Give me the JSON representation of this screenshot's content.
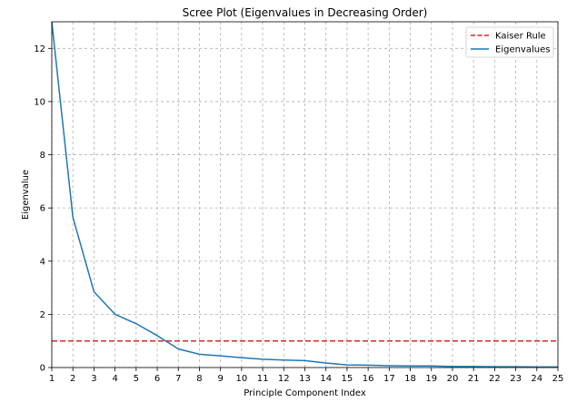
{
  "chart_data": {
    "type": "line",
    "title": "Scree Plot (Eigenvalues in Decreasing Order)",
    "xlabel": "Principle Component Index",
    "ylabel": "Eigenvalue",
    "xlim": [
      1,
      25
    ],
    "ylim": [
      0,
      13
    ],
    "x_ticks": [
      1,
      2,
      3,
      4,
      5,
      6,
      7,
      8,
      9,
      10,
      11,
      12,
      13,
      14,
      15,
      16,
      17,
      18,
      19,
      20,
      21,
      22,
      23,
      24,
      25
    ],
    "y_ticks": [
      0,
      2,
      4,
      6,
      8,
      10,
      12
    ],
    "grid": true,
    "legend_position": "upper-right",
    "series": [
      {
        "name": "Eigenvalues",
        "color": "#1f77b4",
        "style": "solid",
        "x": [
          1,
          2,
          3,
          4,
          5,
          6,
          7,
          8,
          9,
          10,
          11,
          12,
          13,
          14,
          15,
          16,
          17,
          18,
          19,
          20,
          21,
          22,
          23,
          24,
          25
        ],
        "values": [
          13.0,
          5.65,
          2.85,
          2.0,
          1.65,
          1.2,
          0.7,
          0.5,
          0.44,
          0.37,
          0.31,
          0.28,
          0.26,
          0.17,
          0.1,
          0.09,
          0.07,
          0.06,
          0.06,
          0.04,
          0.04,
          0.03,
          0.03,
          0.02,
          0.02
        ]
      }
    ],
    "reference_lines": [
      {
        "name": "Kaiser Rule",
        "orientation": "horizontal",
        "y": 1,
        "color": "#d62728",
        "style": "dashed"
      }
    ],
    "legend": [
      {
        "label": "Kaiser Rule",
        "color": "#d62728",
        "style": "dashed"
      },
      {
        "label": "Eigenvalues",
        "color": "#1f77b4",
        "style": "solid"
      }
    ]
  }
}
